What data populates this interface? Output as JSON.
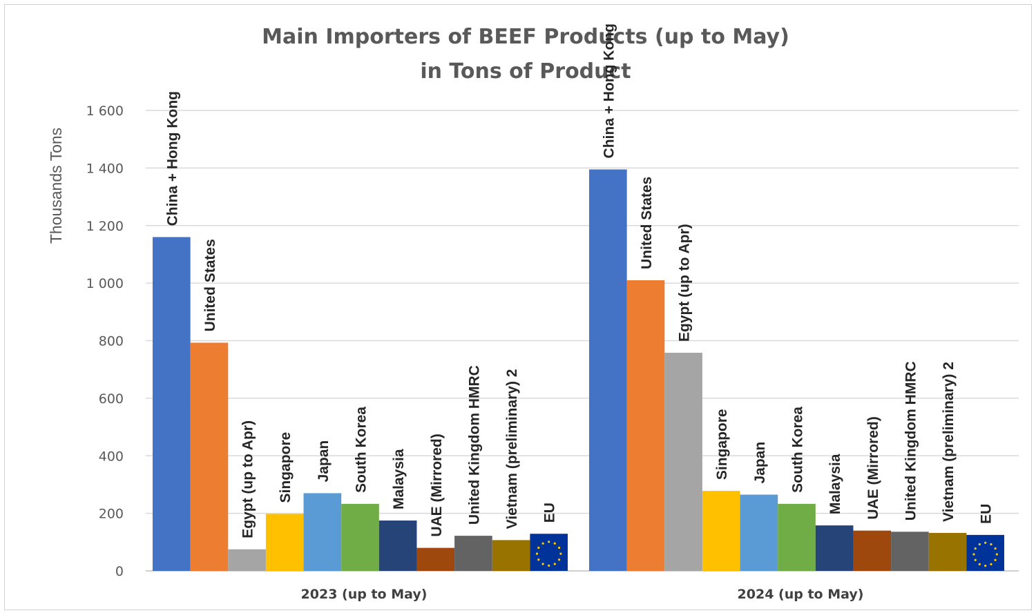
{
  "chart_data": {
    "type": "bar",
    "title": "Main Importers of BEEF Products (up to May)",
    "subtitle": "in Tons of Product",
    "ylabel": "Thousands Tons",
    "xlabel": "",
    "ylim": [
      0,
      1600
    ],
    "yticks": [
      0,
      200,
      400,
      600,
      800,
      1000,
      1200,
      1400,
      1600
    ],
    "ytick_labels": [
      "0",
      "200",
      "400",
      "600",
      "800",
      "1 000",
      "1 200",
      "1 400",
      "1 600"
    ],
    "grid": true,
    "categories": [
      "2023 (up to May)",
      "2024 (up to May)"
    ],
    "series": [
      {
        "name": "China + Hong Kong",
        "color": "#4472C4",
        "values": [
          1160,
          1395
        ]
      },
      {
        "name": "United States",
        "color": "#ED7D31",
        "values": [
          793,
          1010
        ]
      },
      {
        "name": "Egypt (up to Apr)",
        "color": "#A5A5A5",
        "values": [
          75,
          758
        ]
      },
      {
        "name": "Singapore",
        "color": "#FFC000",
        "values": [
          198,
          278
        ]
      },
      {
        "name": "Japan",
        "color": "#5B9BD5",
        "values": [
          270,
          265
        ]
      },
      {
        "name": "South Korea",
        "color": "#70AD47",
        "values": [
          233,
          233
        ]
      },
      {
        "name": "Malaysia",
        "color": "#264478",
        "values": [
          175,
          158
        ]
      },
      {
        "name": "UAE (Mirrored)",
        "color": "#9E480E",
        "values": [
          80,
          140
        ]
      },
      {
        "name": "United Kingdom HMRC",
        "color": "#636363",
        "values": [
          122,
          136
        ]
      },
      {
        "name": "Vietnam (preliminary) 2",
        "color": "#997300",
        "values": [
          107,
          132
        ]
      },
      {
        "name": "EU",
        "color": "#003399",
        "values": [
          129,
          125
        ]
      }
    ]
  }
}
